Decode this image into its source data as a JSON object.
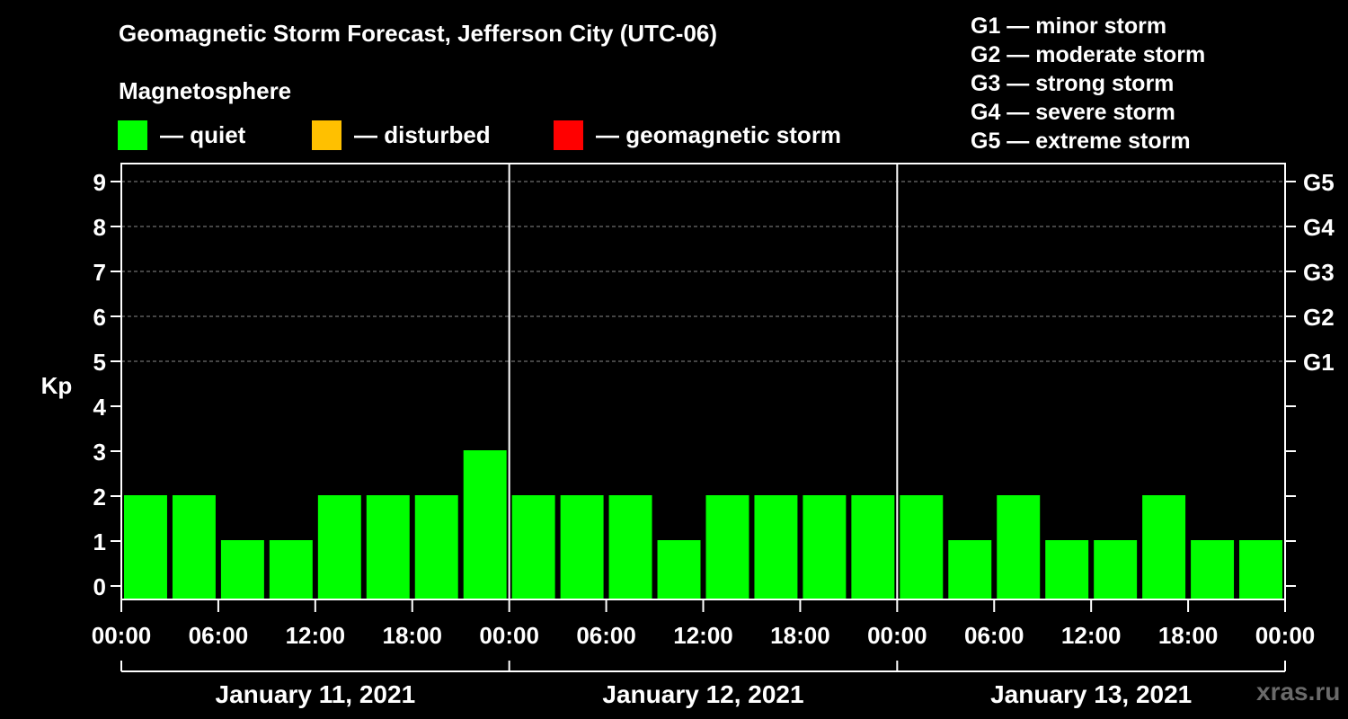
{
  "title": "Geomagnetic Storm Forecast, Jefferson City (UTC-06)",
  "subtitle": "Magnetosphere",
  "legend": [
    {
      "label": "— quiet",
      "color": "#00ff00"
    },
    {
      "label": "— disturbed",
      "color": "#ffc000"
    },
    {
      "label": "— geomagnetic storm",
      "color": "#ff0000"
    }
  ],
  "g_scale": [
    "G1 — minor storm",
    "G2 — moderate storm",
    "G3 — strong storm",
    "G4 — severe storm",
    "G5 — extreme storm"
  ],
  "watermark": "xras.ru",
  "chart_data": {
    "type": "bar",
    "title": "Geomagnetic Storm Forecast, Jefferson City (UTC-06)",
    "ylabel": "Kp",
    "ylim": [
      0,
      9
    ],
    "yticks": [
      0,
      1,
      2,
      3,
      4,
      5,
      6,
      7,
      8,
      9
    ],
    "right_axis_labels": [
      {
        "kp": 5,
        "label": "G1"
      },
      {
        "kp": 6,
        "label": "G2"
      },
      {
        "kp": 7,
        "label": "G3"
      },
      {
        "kp": 8,
        "label": "G4"
      },
      {
        "kp": 9,
        "label": "G5"
      }
    ],
    "xtick_labels": [
      "00:00",
      "06:00",
      "12:00",
      "18:00",
      "00:00",
      "06:00",
      "12:00",
      "18:00",
      "00:00",
      "06:00",
      "12:00",
      "18:00",
      "00:00"
    ],
    "days": [
      "January 11, 2021",
      "January 12, 2021",
      "January 13, 2021"
    ],
    "interval_hours": 3,
    "values": [
      2,
      2,
      1,
      1,
      2,
      2,
      2,
      3,
      2,
      2,
      2,
      1,
      2,
      2,
      2,
      2,
      2,
      1,
      2,
      1,
      1,
      2,
      1,
      1
    ],
    "bar_color": "#00ff00",
    "grid_lines": [
      5,
      6,
      7,
      8,
      9
    ]
  }
}
